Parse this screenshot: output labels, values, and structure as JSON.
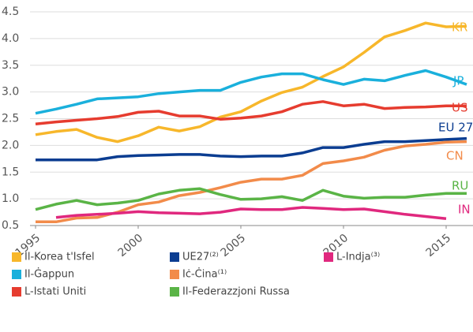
{
  "chart_data": {
    "type": "line",
    "x": [
      1995,
      1996,
      1997,
      1998,
      1999,
      2000,
      2001,
      2002,
      2003,
      2004,
      2005,
      2006,
      2007,
      2008,
      2009,
      2010,
      2011,
      2012,
      2013,
      2014,
      2015,
      2016
    ],
    "xlim": [
      1995,
      2016
    ],
    "xticks": [
      1995,
      2000,
      2005,
      2010,
      2015
    ],
    "ylim": [
      0.5,
      4.5
    ],
    "yticks": [
      0.5,
      {
        "value": 1,
        "label": "1.0"
      },
      1.5,
      {
        "value": 2,
        "label": "2.0"
      },
      2.5,
      {
        "value": 3,
        "label": "3.0"
      },
      3.5,
      {
        "value": 4,
        "label": "4.0"
      },
      4.5
    ],
    "grid": true,
    "series": [
      {
        "name": "Il-Korea t'Isfel",
        "label": "KR",
        "color": "#f7b72b",
        "values": [
          2.2,
          2.26,
          2.3,
          2.15,
          2.07,
          2.18,
          2.34,
          2.27,
          2.35,
          2.53,
          2.63,
          2.83,
          2.99,
          3.09,
          3.29,
          3.47,
          3.74,
          4.03,
          4.15,
          4.29,
          4.22,
          4.23
        ]
      },
      {
        "name": "Il-Ġappun",
        "label": "JP",
        "color": "#1ab0dc",
        "values": [
          2.6,
          2.68,
          2.77,
          2.87,
          2.89,
          2.91,
          2.97,
          3.0,
          3.03,
          3.03,
          3.18,
          3.28,
          3.34,
          3.34,
          3.23,
          3.14,
          3.24,
          3.21,
          3.31,
          3.4,
          3.28,
          3.14
        ]
      },
      {
        "name": "L-Istati Uniti",
        "label": "US",
        "color": "#e63c2f",
        "values": [
          2.4,
          2.44,
          2.47,
          2.5,
          2.54,
          2.62,
          2.64,
          2.55,
          2.55,
          2.49,
          2.51,
          2.55,
          2.63,
          2.77,
          2.82,
          2.74,
          2.77,
          2.69,
          2.71,
          2.72,
          2.74,
          2.74
        ]
      },
      {
        "name": "UE27⁽²⁾",
        "label": "EU 27",
        "color": "#0b3d91",
        "values": [
          1.73,
          1.73,
          1.73,
          1.73,
          1.79,
          1.81,
          1.82,
          1.83,
          1.83,
          1.8,
          1.79,
          1.8,
          1.8,
          1.86,
          1.96,
          1.96,
          2.02,
          2.07,
          2.07,
          2.09,
          2.11,
          2.13
        ]
      },
      {
        "name": "Iċ-Ċina⁽¹⁾",
        "label": "CN",
        "color": "#f28b4a",
        "values": [
          0.57,
          0.57,
          0.64,
          0.65,
          0.75,
          0.89,
          0.94,
          1.06,
          1.12,
          1.21,
          1.31,
          1.37,
          1.37,
          1.44,
          1.66,
          1.71,
          1.78,
          1.91,
          1.99,
          2.02,
          2.06,
          2.07
        ]
      },
      {
        "name": "Il-Federazzjoni Russa",
        "label": "RU",
        "color": "#5ab446",
        "values": [
          0.8,
          0.9,
          0.97,
          0.89,
          0.92,
          0.97,
          1.09,
          1.16,
          1.19,
          1.08,
          0.99,
          1.0,
          1.04,
          0.97,
          1.16,
          1.05,
          1.01,
          1.03,
          1.03,
          1.07,
          1.1,
          1.1
        ]
      },
      {
        "name": "L-Indja⁽³⁾",
        "label": "IN",
        "color": "#e0287e",
        "values": [
          null,
          0.65,
          0.69,
          0.71,
          0.73,
          0.76,
          0.74,
          0.73,
          0.72,
          0.75,
          0.81,
          0.8,
          0.8,
          0.84,
          0.82,
          0.8,
          0.81,
          0.76,
          0.71,
          0.67,
          0.63,
          null
        ]
      }
    ]
  }
}
